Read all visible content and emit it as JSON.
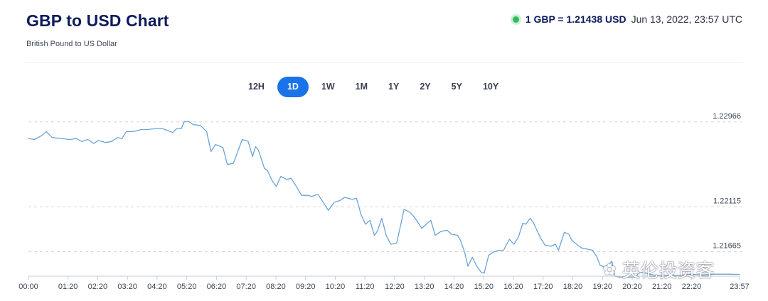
{
  "header": {
    "title": "GBP to USD Chart",
    "subtitle": "British Pound to US Dollar",
    "rate": "1 GBP = 1.21438 USD",
    "timestamp": "Jun 13, 2022, 23:57 UTC",
    "status_color": "#2ebd59"
  },
  "tabs": [
    {
      "label": "12H",
      "active": false
    },
    {
      "label": "1D",
      "active": true
    },
    {
      "label": "1W",
      "active": false
    },
    {
      "label": "1M",
      "active": false
    },
    {
      "label": "1Y",
      "active": false
    },
    {
      "label": "2Y",
      "active": false
    },
    {
      "label": "5Y",
      "active": false
    },
    {
      "label": "10Y",
      "active": false
    }
  ],
  "watermark": {
    "icon": "wechat-icon",
    "text": "英伦投资客"
  },
  "chart_data": {
    "type": "line",
    "title": "GBP to USD Chart",
    "subtitle": "British Pound to US Dollar",
    "xlabel": "",
    "ylabel": "",
    "x_unit": "hours since 00:00",
    "line_color": "#6aa3d6",
    "grid": "horizontal dashed",
    "ylim": [
      1.2142,
      1.2305
    ],
    "y_ticks": [
      {
        "value": 1.22966,
        "label": "1.22966"
      },
      {
        "value": 1.22115,
        "label": "1.22115"
      },
      {
        "value": 1.21665,
        "label": "1.21665"
      }
    ],
    "x_ticks": [
      {
        "value": 0.0,
        "label": "00:00"
      },
      {
        "value": 1.333,
        "label": "01:20"
      },
      {
        "value": 2.333,
        "label": "02:20"
      },
      {
        "value": 3.333,
        "label": "03:20"
      },
      {
        "value": 4.333,
        "label": "04:20"
      },
      {
        "value": 5.333,
        "label": "05:20"
      },
      {
        "value": 6.333,
        "label": "06:20"
      },
      {
        "value": 7.333,
        "label": "07:20"
      },
      {
        "value": 8.333,
        "label": "08:20"
      },
      {
        "value": 9.333,
        "label": "09:20"
      },
      {
        "value": 10.333,
        "label": "10:20"
      },
      {
        "value": 11.333,
        "label": "11:20"
      },
      {
        "value": 12.333,
        "label": "12:20"
      },
      {
        "value": 13.333,
        "label": "13:20"
      },
      {
        "value": 14.333,
        "label": "14:20"
      },
      {
        "value": 15.333,
        "label": "15:20"
      },
      {
        "value": 16.333,
        "label": "16:20"
      },
      {
        "value": 17.333,
        "label": "17:20"
      },
      {
        "value": 18.333,
        "label": "18:20"
      },
      {
        "value": 19.333,
        "label": "19:20"
      },
      {
        "value": 20.333,
        "label": "20:20"
      },
      {
        "value": 21.333,
        "label": "21:20"
      },
      {
        "value": 22.333,
        "label": "22:20"
      },
      {
        "value": 23.95,
        "label": "23:57"
      }
    ],
    "series": [
      {
        "points": [
          [
            0.0,
            1.228
          ],
          [
            0.2,
            1.2279
          ],
          [
            0.45,
            1.2283
          ],
          [
            0.6,
            1.2287
          ],
          [
            0.8,
            1.2281
          ],
          [
            1.1,
            1.228
          ],
          [
            1.4,
            1.2279
          ],
          [
            1.6,
            1.228
          ],
          [
            1.8,
            1.2277
          ],
          [
            2.0,
            1.2279
          ],
          [
            2.2,
            1.2275
          ],
          [
            2.35,
            1.2278
          ],
          [
            2.6,
            1.2276
          ],
          [
            2.8,
            1.2277
          ],
          [
            3.0,
            1.2281
          ],
          [
            3.15,
            1.228
          ],
          [
            3.3,
            1.2287
          ],
          [
            3.55,
            1.2287
          ],
          [
            3.8,
            1.2289
          ],
          [
            4.0,
            1.2289
          ],
          [
            4.3,
            1.229
          ],
          [
            4.5,
            1.229
          ],
          [
            4.7,
            1.2288
          ],
          [
            4.85,
            1.2286
          ],
          [
            5.0,
            1.229
          ],
          [
            5.15,
            1.229
          ],
          [
            5.25,
            1.2297
          ],
          [
            5.4,
            1.2297
          ],
          [
            5.55,
            1.2294
          ],
          [
            5.8,
            1.2293
          ],
          [
            6.0,
            1.2287
          ],
          [
            6.15,
            1.2267
          ],
          [
            6.3,
            1.2274
          ],
          [
            6.4,
            1.2273
          ],
          [
            6.55,
            1.2271
          ],
          [
            6.7,
            1.2254
          ],
          [
            6.9,
            1.2255
          ],
          [
            7.05,
            1.2267
          ],
          [
            7.2,
            1.2279
          ],
          [
            7.4,
            1.2277
          ],
          [
            7.55,
            1.2262
          ],
          [
            7.65,
            1.2272
          ],
          [
            7.75,
            1.2268
          ],
          [
            7.95,
            1.225
          ],
          [
            8.05,
            1.2248
          ],
          [
            8.2,
            1.2238
          ],
          [
            8.35,
            1.2232
          ],
          [
            8.5,
            1.2242
          ],
          [
            8.7,
            1.2239
          ],
          [
            8.85,
            1.224
          ],
          [
            9.0,
            1.2233
          ],
          [
            9.2,
            1.2223
          ],
          [
            9.4,
            1.2223
          ],
          [
            9.55,
            1.2222
          ],
          [
            9.75,
            1.2224
          ],
          [
            9.95,
            1.2215
          ],
          [
            10.1,
            1.2208
          ],
          [
            10.3,
            1.2216
          ],
          [
            10.5,
            1.2218
          ],
          [
            10.65,
            1.2221
          ],
          [
            10.9,
            1.2219
          ],
          [
            11.05,
            1.222
          ],
          [
            11.2,
            1.2204
          ],
          [
            11.35,
            1.2194
          ],
          [
            11.5,
            1.2198
          ],
          [
            11.65,
            1.2183
          ],
          [
            11.75,
            1.2187
          ],
          [
            11.9,
            1.22
          ],
          [
            12.05,
            1.2183
          ],
          [
            12.2,
            1.2174
          ],
          [
            12.4,
            1.2175
          ],
          [
            12.55,
            1.2195
          ],
          [
            12.65,
            1.2209
          ],
          [
            12.85,
            1.2206
          ],
          [
            13.0,
            1.2201
          ],
          [
            13.25,
            1.219
          ],
          [
            13.4,
            1.2194
          ],
          [
            13.55,
            1.2198
          ],
          [
            13.7,
            1.2183
          ],
          [
            13.9,
            1.2187
          ],
          [
            14.1,
            1.2188
          ],
          [
            14.25,
            1.2184
          ],
          [
            14.45,
            1.2183
          ],
          [
            14.55,
            1.2178
          ],
          [
            14.7,
            1.2165
          ],
          [
            14.8,
            1.2152
          ],
          [
            14.95,
            1.2161
          ],
          [
            15.1,
            1.2152
          ],
          [
            15.25,
            1.2146
          ],
          [
            15.35,
            1.2145
          ],
          [
            15.5,
            1.2163
          ],
          [
            15.65,
            1.2166
          ],
          [
            15.85,
            1.2168
          ],
          [
            16.0,
            1.2168
          ],
          [
            16.2,
            1.2179
          ],
          [
            16.35,
            1.2174
          ],
          [
            16.5,
            1.2181
          ],
          [
            16.65,
            1.2195
          ],
          [
            16.75,
            1.2194
          ],
          [
            16.9,
            1.22
          ],
          [
            17.0,
            1.2196
          ],
          [
            17.25,
            1.218
          ],
          [
            17.4,
            1.2173
          ],
          [
            17.6,
            1.2172
          ],
          [
            17.75,
            1.2174
          ],
          [
            17.85,
            1.2168
          ],
          [
            18.05,
            1.2186
          ],
          [
            18.2,
            1.2184
          ],
          [
            18.3,
            1.2178
          ],
          [
            18.5,
            1.2173
          ],
          [
            18.65,
            1.217
          ],
          [
            18.85,
            1.2169
          ],
          [
            19.0,
            1.2168
          ],
          [
            19.15,
            1.2161
          ],
          [
            19.25,
            1.2153
          ],
          [
            19.4,
            1.2151
          ],
          [
            19.55,
            1.2154
          ],
          [
            19.65,
            1.2157
          ],
          [
            19.75,
            1.2142
          ],
          [
            19.9,
            1.2141
          ],
          [
            20.2,
            1.2141
          ],
          [
            20.45,
            1.2141
          ],
          [
            20.55,
            1.2145
          ],
          [
            20.7,
            1.2146
          ],
          [
            20.9,
            1.2144
          ],
          [
            21.1,
            1.2143
          ],
          [
            21.4,
            1.2143
          ],
          [
            21.7,
            1.2143
          ],
          [
            22.0,
            1.2143
          ],
          [
            22.3,
            1.2144
          ],
          [
            22.7,
            1.2143
          ],
          [
            23.1,
            1.2144
          ],
          [
            23.5,
            1.2144
          ],
          [
            23.95,
            1.21438
          ]
        ]
      }
    ]
  }
}
